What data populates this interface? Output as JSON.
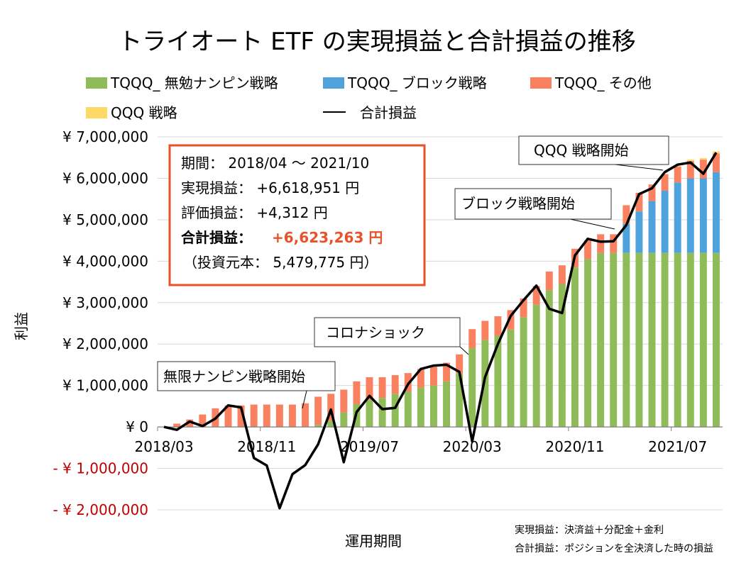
{
  "chart_data": {
    "type": "bar",
    "title": "トライオート ETF の実現損益と合計損益の推移",
    "xlabel": "運用期間",
    "ylabel": "利益",
    "ylim": [
      -2000000,
      7000000
    ],
    "y_ticks": [
      {
        "value": 7000000,
        "label": "¥ 7,000,000"
      },
      {
        "value": 6000000,
        "label": "¥ 6,000,000"
      },
      {
        "value": 5000000,
        "label": "¥ 5,000,000"
      },
      {
        "value": 4000000,
        "label": "¥ 4,000,000"
      },
      {
        "value": 3000000,
        "label": "¥ 3,000,000"
      },
      {
        "value": 2000000,
        "label": "¥ 2,000,000"
      },
      {
        "value": 1000000,
        "label": "¥ 1,000,000"
      },
      {
        "value": 0,
        "label": "¥ 0"
      },
      {
        "value": -1000000,
        "label": "- ¥ 1,000,000"
      },
      {
        "value": -2000000,
        "label": "- ¥ 2,000,000"
      }
    ],
    "negative_tick_color": "#c00000",
    "categories": [
      "2018/03",
      "2018/04",
      "2018/05",
      "2018/06",
      "2018/07",
      "2018/08",
      "2018/09",
      "2018/10",
      "2018/11",
      "2018/12",
      "2019/01",
      "2019/02",
      "2019/03",
      "2019/04",
      "2019/05",
      "2019/06",
      "2019/07",
      "2019/08",
      "2019/09",
      "2019/10",
      "2019/11",
      "2019/12",
      "2020/01",
      "2020/02",
      "2020/03",
      "2020/04",
      "2020/05",
      "2020/06",
      "2020/07",
      "2020/08",
      "2020/09",
      "2020/10",
      "2020/11",
      "2020/12",
      "2021/01",
      "2021/02",
      "2021/03",
      "2021/04",
      "2021/05",
      "2021/06",
      "2021/07",
      "2021/08",
      "2021/09",
      "2021/10"
    ],
    "x_tick_labels": [
      {
        "index": 0,
        "label": "2018/03"
      },
      {
        "index": 8,
        "label": "2018/11"
      },
      {
        "index": 16,
        "label": "2019/07"
      },
      {
        "index": 24,
        "label": "2020/03"
      },
      {
        "index": 32,
        "label": "2020/11"
      },
      {
        "index": 40,
        "label": "2021/07"
      }
    ],
    "series": [
      {
        "name": "TQQQ_ 無勉ナンピン戦略",
        "kind": "bar",
        "color": "#8fbc59",
        "values": [
          0,
          0,
          0,
          0,
          0,
          0,
          0,
          0,
          0,
          0,
          0,
          0,
          50000,
          150000,
          350000,
          550000,
          650000,
          700000,
          800000,
          850000,
          950000,
          1000000,
          1100000,
          1300000,
          1900000,
          2100000,
          2200000,
          2350000,
          2650000,
          2950000,
          3300000,
          3450000,
          3850000,
          4050000,
          4200000,
          4200000,
          4200000,
          4200000,
          4200000,
          4200000,
          4200000,
          4200000,
          4200000,
          4200000
        ]
      },
      {
        "name": "TQQQ_ ブロック戦略",
        "kind": "bar",
        "color": "#4fa3dd",
        "values": [
          0,
          0,
          0,
          0,
          0,
          0,
          0,
          0,
          0,
          0,
          0,
          0,
          0,
          0,
          0,
          0,
          0,
          0,
          0,
          0,
          0,
          0,
          0,
          0,
          0,
          0,
          0,
          0,
          0,
          0,
          0,
          0,
          0,
          0,
          0,
          0,
          700000,
          1000000,
          1250000,
          1500000,
          1700000,
          1800000,
          1800000,
          1950000
        ]
      },
      {
        "name": "TQQQ_ その他",
        "kind": "bar",
        "color": "#f98160",
        "values": [
          0,
          80000,
          180000,
          300000,
          450000,
          520000,
          520000,
          540000,
          540000,
          540000,
          540000,
          570000,
          680000,
          650000,
          550000,
          550000,
          550000,
          500000,
          450000,
          450000,
          450000,
          450000,
          450000,
          450000,
          460000,
          460000,
          470000,
          470000,
          450000,
          450000,
          450000,
          450000,
          450000,
          450000,
          450000,
          450000,
          450000,
          450000,
          400000,
          400000,
          380000,
          420000,
          450000,
          450000
        ]
      },
      {
        "name": "QQQ 戦略",
        "kind": "bar",
        "color": "#ffd966",
        "values": [
          0,
          0,
          0,
          0,
          0,
          0,
          0,
          0,
          0,
          0,
          0,
          0,
          0,
          0,
          0,
          0,
          0,
          0,
          0,
          0,
          0,
          0,
          0,
          0,
          0,
          0,
          0,
          0,
          0,
          0,
          0,
          0,
          0,
          0,
          0,
          0,
          0,
          0,
          0,
          0,
          20000,
          30000,
          40000,
          50000
        ]
      },
      {
        "name": "合計損益",
        "kind": "line",
        "color": "#000000",
        "values": [
          0,
          -70000,
          130000,
          20000,
          200000,
          520000,
          470000,
          -750000,
          -930000,
          -1960000,
          -1140000,
          -920000,
          -420000,
          420000,
          -850000,
          360000,
          750000,
          430000,
          460000,
          1030000,
          1400000,
          1480000,
          1500000,
          1330000,
          -350000,
          1200000,
          2000000,
          2680000,
          3060000,
          3410000,
          2850000,
          2750000,
          4140000,
          4540000,
          4470000,
          4480000,
          4870000,
          5620000,
          5760000,
          6150000,
          6330000,
          6380000,
          6110000,
          6620000
        ]
      }
    ],
    "legend": [
      {
        "label": "TQQQ_ 無勉ナンピン戦略",
        "color": "#8fbc59",
        "kind": "swatch"
      },
      {
        "label": "TQQQ_ ブロック戦略",
        "color": "#4fa3dd",
        "kind": "swatch"
      },
      {
        "label": "TQQQ_ その他",
        "color": "#f98160",
        "kind": "swatch"
      },
      {
        "label": "QQQ 戦略",
        "color": "#ffd966",
        "kind": "swatch"
      },
      {
        "label": "合計損益",
        "color": "#000000",
        "kind": "line"
      }
    ],
    "legend_position": "top",
    "summary_box": {
      "period": "期間： 2018/04 ～ 2021/10",
      "realized": "実現損益： +6,618,951 円",
      "unrealized": "評価損益： +4,312 円",
      "total_label": "合計損益：",
      "total_value": "+6,623,263 円",
      "principal": "（投資元本： 5,479,775 円）",
      "border_color": "#e8522a",
      "highlight_color": "#e8522a"
    },
    "annotations": [
      {
        "text": "無限ナンピン戦略開始",
        "target_index": 12
      },
      {
        "text": "コロナショック",
        "target_index": 24
      },
      {
        "text": "ブロック戦略開始",
        "target_index": 35
      },
      {
        "text": "QQQ 戦略開始",
        "target_index": 39
      }
    ],
    "footnotes": [
      "実現損益：決済益＋分配金＋金利",
      "合計損益：ポジションを全決済した時の損益"
    ]
  }
}
